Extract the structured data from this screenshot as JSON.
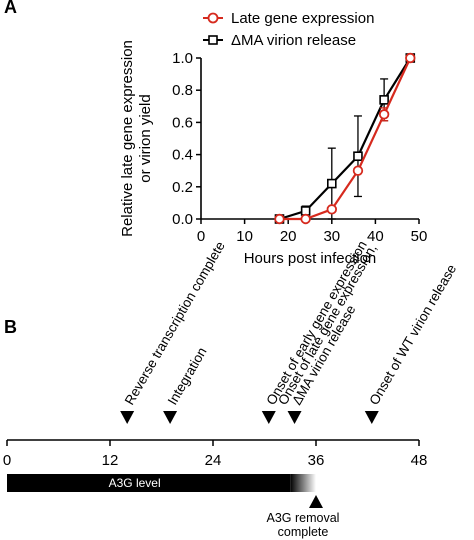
{
  "panel_a": {
    "letter": "A"
  },
  "panel_b": {
    "letter": "B"
  },
  "chart_data": [
    {
      "type": "line",
      "xlabel": "Hours post infection",
      "ylabel_line1": "Relative late gene expression",
      "ylabel_line2": "or virion yield",
      "xlim": [
        0,
        50
      ],
      "ylim": [
        0,
        1.0
      ],
      "x_ticks": [
        "0",
        "10",
        "20",
        "30",
        "40",
        "50"
      ],
      "y_ticks": [
        "0.0",
        "0.2",
        "0.4",
        "0.6",
        "0.8",
        "1.0"
      ],
      "grid": false,
      "legend_position": "top-right",
      "series": [
        {
          "name": "Late gene expression",
          "color": "#d62a1e",
          "marker": "circle",
          "x": [
            18,
            24,
            30,
            36,
            42,
            48
          ],
          "y": [
            0.0,
            0.0,
            0.06,
            0.3,
            0.65,
            1.0
          ],
          "err": [
            0.0,
            0.0,
            0.0,
            0.0,
            0.04,
            0.0
          ]
        },
        {
          "name": "ΔMA virion release",
          "color": "#000000",
          "marker": "square",
          "x": [
            18,
            24,
            30,
            36,
            42,
            48
          ],
          "y": [
            0.0,
            0.05,
            0.22,
            0.39,
            0.74,
            1.0
          ],
          "err": [
            0.0,
            0.03,
            0.22,
            0.25,
            0.13,
            0.0
          ]
        }
      ]
    },
    {
      "type": "timeline",
      "xlim": [
        0,
        48
      ],
      "x_ticks": [
        "0",
        "12",
        "24",
        "36",
        "48"
      ],
      "events": [
        {
          "label_lines": [
            "Reverse transcription complete"
          ],
          "x": 14
        },
        {
          "label_lines": [
            "Integration"
          ],
          "x": 19
        },
        {
          "label_lines": [
            "Onset of early gene expression"
          ],
          "x": 30.5
        },
        {
          "label_lines": [
            "Onset of late gene expression,",
            "ΔMA virion release"
          ],
          "x": 33.5
        },
        {
          "label_lines": [
            "Onset of WT virion release"
          ],
          "x": 42.5
        }
      ],
      "bar": {
        "label": "A3G level",
        "start": 0,
        "solid_end": 33,
        "fade_end": 36
      },
      "removal": {
        "label_lines": [
          "A3G removal",
          "complete"
        ],
        "x": 36
      }
    }
  ]
}
